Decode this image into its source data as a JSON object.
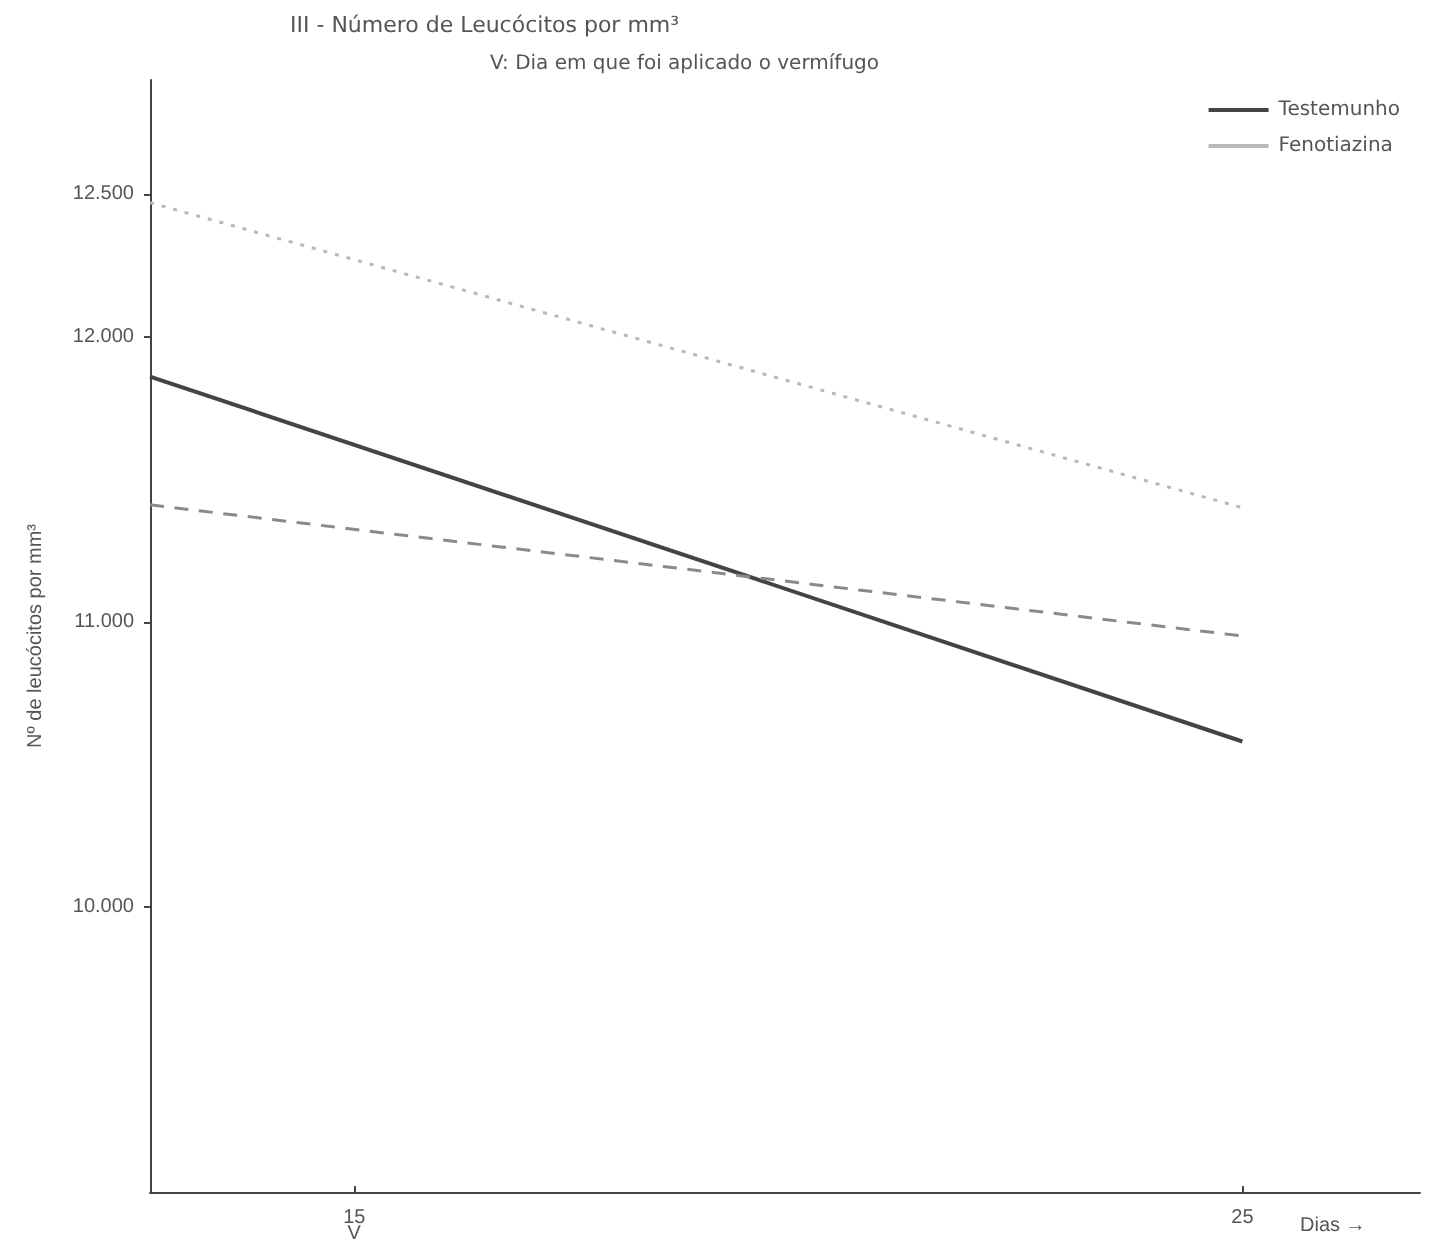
{
  "chart_data": {
    "type": "line",
    "title": "III - Número de Leucócitos por mm³",
    "subtitle": "V: Dia em que foi aplicado o vermífugo",
    "ylabel": "Nº de leucócitos por mm³",
    "xlabel": "Dias →",
    "x": [
      12.7,
      25
    ],
    "series": [
      {
        "name": "Testemunho",
        "color": "#444444",
        "line_style": "solid",
        "values": [
          11860,
          10580
        ]
      },
      {
        "name": "Fenotiazina",
        "color": "#b8b8b8",
        "line_style": "dotted",
        "values": [
          12470,
          11400
        ]
      },
      {
        "color": "#8a8a8a",
        "line_style": "dashed",
        "values": [
          11410,
          10950
        ]
      }
    ],
    "xlim": [
      12.7,
      27
    ],
    "xticks": [
      15,
      25
    ],
    "ylim": [
      9000,
      12900
    ],
    "yticks": [
      {
        "value": 10000,
        "label": "10.000"
      },
      {
        "value": 11000,
        "label": "11.000"
      },
      {
        "value": 12000,
        "label": "12.000"
      },
      {
        "value": 12500,
        "label": "12.500"
      }
    ],
    "annotations": [
      "V"
    ],
    "grid": false,
    "legend": "top right",
    "marker": "none"
  }
}
